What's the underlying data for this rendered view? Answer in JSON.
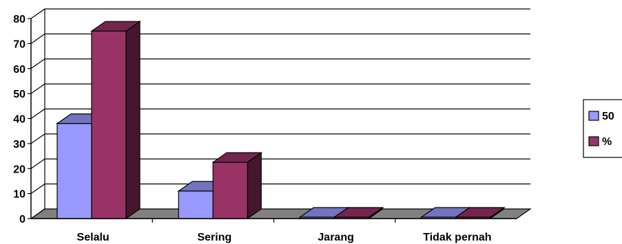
{
  "chart_data": {
    "type": "bar",
    "style": "3d-clustered-column",
    "categories": [
      "Selalu",
      "Sering",
      "Jarang",
      "Tidak pernah"
    ],
    "series": [
      {
        "name": "50",
        "values": [
          38,
          11,
          0,
          0
        ],
        "color": "#9999FF"
      },
      {
        "name": "%",
        "values": [
          75,
          22.5,
          0,
          0
        ],
        "color": "#993366"
      }
    ],
    "ylim": [
      0,
      80
    ],
    "yticks": [
      0,
      10,
      20,
      30,
      40,
      50,
      60,
      70,
      80
    ],
    "grid": true,
    "legend_position": "right"
  }
}
